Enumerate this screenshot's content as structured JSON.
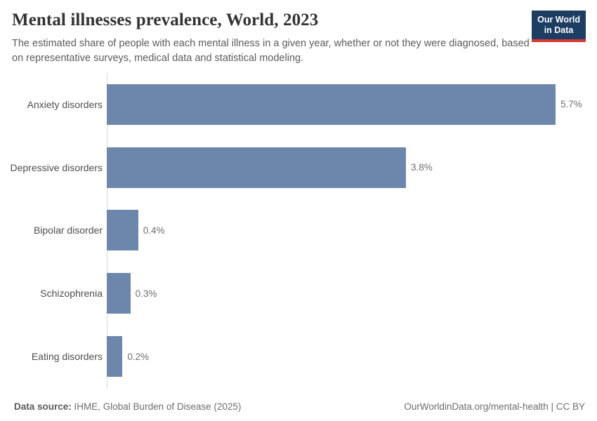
{
  "header": {
    "title": "Mental illnesses prevalence, World, 2023",
    "subtitle": "The estimated share of people with each mental illness in a given year, whether or not they were diagnosed, based on representative surveys, medical data and statistical modeling.",
    "logo": {
      "line1": "Our World",
      "line2": "in Data"
    }
  },
  "chart_data": {
    "type": "bar",
    "orientation": "horizontal",
    "title": "Mental illnesses prevalence, World, 2023",
    "categories": [
      "Anxiety disorders",
      "Depressive disorders",
      "Bipolar disorder",
      "Schizophrenia",
      "Eating disorders"
    ],
    "values": [
      5.7,
      3.8,
      0.4,
      0.3,
      0.2
    ],
    "value_labels": [
      "5.7%",
      "3.8%",
      "0.4%",
      "0.3%",
      "0.2%"
    ],
    "unit": "%",
    "xlim": [
      0,
      5.7
    ],
    "grid": false,
    "legend": false,
    "bar_color": "#6d87ac",
    "axis_line_color": "#dadada"
  },
  "footer": {
    "data_source_label": "Data source:",
    "data_source_value": " IHME, Global Burden of Disease (2025)",
    "right_text": "OurWorldinData.org/mental-health | CC BY"
  },
  "colors": {
    "title": "#333333",
    "subtitle": "#5b5b5b",
    "category_label": "#4e4e4e",
    "value_label": "#6e6e6e",
    "logo_background": "#1d3d63",
    "logo_accent": "#d93a32"
  }
}
